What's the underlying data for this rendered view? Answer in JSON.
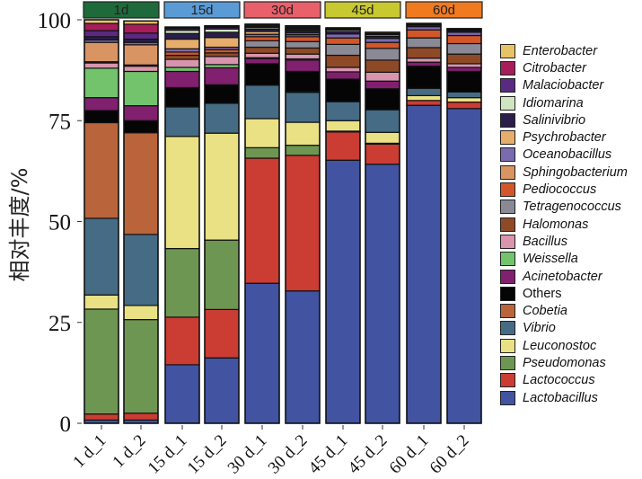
{
  "chart_data": {
    "type": "bar",
    "stacked": true,
    "title": "",
    "xlabel": "",
    "ylabel": "相对丰度/%",
    "ylim": [
      0,
      100
    ],
    "yticks": [
      "0",
      "25",
      "50",
      "75",
      "100"
    ],
    "grid": false,
    "legend_position": "right",
    "facets": [
      {
        "label": "1d",
        "color": "#1e6a3a",
        "samples": [
          "1 d_1",
          "1 d_2"
        ]
      },
      {
        "label": "15d",
        "color": "#5b9bd5",
        "samples": [
          "15 d_1",
          "15 d_2"
        ]
      },
      {
        "label": "30d",
        "color": "#e8606a",
        "samples": [
          "30 d_1",
          "30 d_2"
        ]
      },
      {
        "label": "45d",
        "color": "#c8c830",
        "samples": [
          "45 d_1",
          "45 d_2"
        ]
      },
      {
        "label": "60d",
        "color": "#f07a20",
        "samples": [
          "60 d_1",
          "60 d_2"
        ]
      }
    ],
    "categories": [
      "1 d_1",
      "1 d_2",
      "15 d_1",
      "15 d_2",
      "30 d_1",
      "30 d_2",
      "45 d_1",
      "45 d_2",
      "60 d_1",
      "60 d_2"
    ],
    "series": [
      {
        "name": "Lactobacillus",
        "color": "#4153a1",
        "values": [
          0.8,
          0.8,
          14.5,
          16.2,
          34.7,
          32.8,
          65.2,
          64.2,
          78.8,
          78.0
        ]
      },
      {
        "name": "Lactococcus",
        "color": "#cb3c33",
        "values": [
          1.5,
          1.7,
          11.8,
          12.0,
          31.0,
          33.6,
          7.0,
          5.0,
          1.2,
          1.6
        ]
      },
      {
        "name": "Pseudomonas",
        "color": "#6e9653",
        "values": [
          26.0,
          23.2,
          17.0,
          17.2,
          2.6,
          2.5,
          0.2,
          0.2,
          0.0,
          0.0
        ]
      },
      {
        "name": "Leuconostoc",
        "color": "#e9e183",
        "values": [
          3.5,
          3.5,
          27.8,
          26.5,
          7.2,
          5.7,
          2.6,
          2.7,
          1.2,
          1.1
        ]
      },
      {
        "name": "Vibrio",
        "color": "#466b85",
        "values": [
          19.0,
          17.6,
          7.3,
          7.4,
          8.3,
          7.4,
          4.7,
          5.6,
          1.8,
          1.4
        ]
      },
      {
        "name": "Cobetia",
        "color": "#b9643a",
        "values": [
          23.7,
          25.2,
          0.0,
          0.0,
          0.0,
          0.2,
          0.0,
          0.0,
          0.0,
          0.0
        ]
      },
      {
        "name": "Others",
        "color": "#050505",
        "values": [
          3.0,
          3.0,
          4.8,
          4.6,
          5.3,
          5.0,
          5.6,
          5.2,
          5.5,
          5.1
        ]
      },
      {
        "name": "Acinetobacter",
        "color": "#80206e",
        "values": [
          3.2,
          3.7,
          4.0,
          4.2,
          1.3,
          2.8,
          1.8,
          1.9,
          1.0,
          1.0
        ]
      },
      {
        "name": "Weissella",
        "color": "#72c36c",
        "values": [
          7.3,
          8.5,
          1.0,
          0.8,
          0.2,
          0.3,
          0.0,
          0.0,
          0.0,
          0.0
        ]
      },
      {
        "name": "Bacillus",
        "color": "#d895ad",
        "values": [
          1.3,
          1.3,
          2.0,
          2.0,
          1.1,
          1.2,
          1.1,
          2.2,
          1.0,
          0.9
        ]
      },
      {
        "name": "Halomonas",
        "color": "#8e4a26",
        "values": [
          0.3,
          0.3,
          1.0,
          0.9,
          1.5,
          1.5,
          3.0,
          3.0,
          2.6,
          2.4
        ]
      },
      {
        "name": "Tetragenococcus",
        "color": "#8a8a96",
        "values": [
          0.0,
          0.0,
          0.0,
          0.0,
          1.6,
          1.6,
          2.7,
          2.9,
          2.4,
          2.6
        ]
      },
      {
        "name": "Pediococcus",
        "color": "#d2562a",
        "values": [
          0.0,
          0.0,
          0.8,
          0.8,
          1.0,
          1.2,
          1.6,
          1.5,
          2.0,
          2.0
        ]
      },
      {
        "name": "Sphingobacterium",
        "color": "#d99463",
        "values": [
          4.8,
          5.0,
          0.0,
          0.0,
          0.0,
          0.0,
          0.0,
          0.0,
          0.0,
          0.0
        ]
      },
      {
        "name": "Oceanobacillus",
        "color": "#7a6bb0",
        "values": [
          0.6,
          0.6,
          0.8,
          0.6,
          0.6,
          0.5,
          1.0,
          1.0,
          0.8,
          0.8
        ]
      },
      {
        "name": "Psychrobacter",
        "color": "#e6ad6b",
        "values": [
          0.0,
          0.0,
          2.4,
          2.4,
          0.7,
          0.4,
          0.0,
          0.0,
          0.0,
          0.0
        ]
      },
      {
        "name": "Salinivibrio",
        "color": "#2c1e4a",
        "values": [
          0.8,
          0.8,
          1.4,
          1.3,
          0.6,
          0.6,
          0.6,
          0.5,
          0.4,
          0.4
        ]
      },
      {
        "name": "Idiomarina",
        "color": "#cfe5c0",
        "values": [
          0.0,
          0.0,
          0.8,
          0.8,
          0.4,
          0.3,
          0.4,
          0.4,
          0.0,
          0.0
        ]
      },
      {
        "name": "Malaciobacter",
        "color": "#5a2a82",
        "values": [
          1.5,
          1.5,
          0.4,
          0.4,
          0.3,
          0.3,
          0.2,
          0.2,
          0.2,
          0.2
        ]
      },
      {
        "name": "Citrobacter",
        "color": "#a61d5a",
        "values": [
          1.8,
          2.2,
          0.2,
          0.2,
          0.3,
          0.3,
          0.1,
          0.1,
          0.1,
          0.1
        ]
      },
      {
        "name": "Enterobacter",
        "color": "#e6c466",
        "values": [
          0.9,
          0.8,
          0.2,
          0.2,
          0.2,
          0.3,
          0.2,
          0.3,
          0.1,
          0.2
        ]
      }
    ]
  },
  "legend": {
    "items": [
      {
        "label": "Enterobacter",
        "color": "#e6c466",
        "italic": true
      },
      {
        "label": "Citrobacter",
        "color": "#a61d5a",
        "italic": true
      },
      {
        "label": "Malaciobacter",
        "color": "#5a2a82",
        "italic": true
      },
      {
        "label": "Idiomarina",
        "color": "#cfe5c0",
        "italic": true
      },
      {
        "label": "Salinivibrio",
        "color": "#2c1e4a",
        "italic": true
      },
      {
        "label": "Psychrobacter",
        "color": "#e6ad6b",
        "italic": true
      },
      {
        "label": "Oceanobacillus",
        "color": "#7a6bb0",
        "italic": true
      },
      {
        "label": "Sphingobacterium",
        "color": "#d99463",
        "italic": true
      },
      {
        "label": "Pediococcus",
        "color": "#d2562a",
        "italic": true
      },
      {
        "label": "Tetragenococcus",
        "color": "#8a8a96",
        "italic": true
      },
      {
        "label": "Halomonas",
        "color": "#8e4a26",
        "italic": true
      },
      {
        "label": "Bacillus",
        "color": "#d895ad",
        "italic": true
      },
      {
        "label": "Weissella",
        "color": "#72c36c",
        "italic": true
      },
      {
        "label": "Acinetobacter",
        "color": "#80206e",
        "italic": true
      },
      {
        "label": "Others",
        "color": "#050505",
        "italic": false
      },
      {
        "label": "Cobetia",
        "color": "#b9643a",
        "italic": true
      },
      {
        "label": "Vibrio",
        "color": "#466b85",
        "italic": true
      },
      {
        "label": "Leuconostoc",
        "color": "#e9e183",
        "italic": true
      },
      {
        "label": "Pseudomonas",
        "color": "#6e9653",
        "italic": true
      },
      {
        "label": "Lactococcus",
        "color": "#cb3c33",
        "italic": true
      },
      {
        "label": "Lactobacillus",
        "color": "#4153a1",
        "italic": true
      }
    ]
  }
}
